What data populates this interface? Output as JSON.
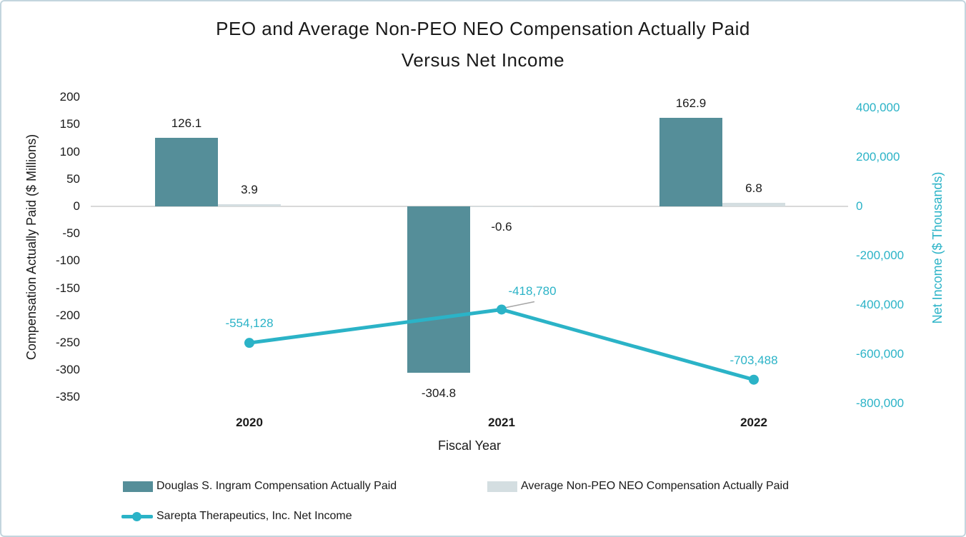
{
  "chart_data": {
    "type": "bar+line",
    "title_lines": [
      "PEO and Average Non-PEO NEO Compensation Actually Paid",
      "Versus Net Income"
    ],
    "categories": [
      "2020",
      "2021",
      "2022"
    ],
    "xlabel": "Fiscal Year",
    "grid": false,
    "legend_position": "bottom",
    "left_axis": {
      "label": "Compensation Actually Paid ($ Millions)",
      "range": [
        -350,
        200
      ],
      "ticks": [
        {
          "value": 200,
          "label": "200"
        },
        {
          "value": 150,
          "label": "150"
        },
        {
          "value": 100,
          "label": "100"
        },
        {
          "value": 50,
          "label": "50"
        },
        {
          "value": 0,
          "label": "0"
        },
        {
          "value": -50,
          "label": "-50"
        },
        {
          "value": -100,
          "label": "-100"
        },
        {
          "value": -150,
          "label": "-150"
        },
        {
          "value": -200,
          "label": "-200"
        },
        {
          "value": -250,
          "label": "-250"
        },
        {
          "value": -300,
          "label": "-300"
        },
        {
          "value": -350,
          "label": "-350"
        }
      ]
    },
    "right_axis": {
      "label": "Net Income ($ Thousands)",
      "color": "#2BB3C7",
      "range": [
        -800000,
        400000
      ],
      "ticks": [
        {
          "value": 400000,
          "label": "400,000"
        },
        {
          "value": 200000,
          "label": "200,000"
        },
        {
          "value": 0,
          "label": "0"
        },
        {
          "value": -200000,
          "label": "-200,000"
        },
        {
          "value": -400000,
          "label": "-400,000"
        },
        {
          "value": -600000,
          "label": "-600,000"
        },
        {
          "value": -800000,
          "label": "-800,000"
        }
      ]
    },
    "series": [
      {
        "name": "Douglas S. Ingram Compensation Actually Paid",
        "type": "bar",
        "axis": "left",
        "color": "#558E99",
        "values": [
          126.1,
          -304.8,
          162.9
        ],
        "value_labels": [
          "126.1",
          "-304.8",
          "162.9"
        ]
      },
      {
        "name": "Average Non-PEO NEO Compensation Actually Paid",
        "type": "bar",
        "axis": "left",
        "color": "#D4DEE1",
        "values": [
          3.9,
          -0.6,
          6.8
        ],
        "value_labels": [
          "3.9",
          "-0.6",
          "6.8"
        ]
      },
      {
        "name": "Sarepta Therapeutics, Inc. Net Income",
        "type": "line",
        "axis": "right",
        "color": "#2BB3C7",
        "values": [
          -554128,
          -418780,
          -703488
        ],
        "value_labels": [
          "-554,128",
          "-418,780",
          "-703,488"
        ]
      }
    ],
    "colors": {
      "axis_line": "#D9D9D9",
      "leader_line": "#A6A6A6",
      "border": "#C3D5DE",
      "text": "#1A1A1A"
    }
  }
}
